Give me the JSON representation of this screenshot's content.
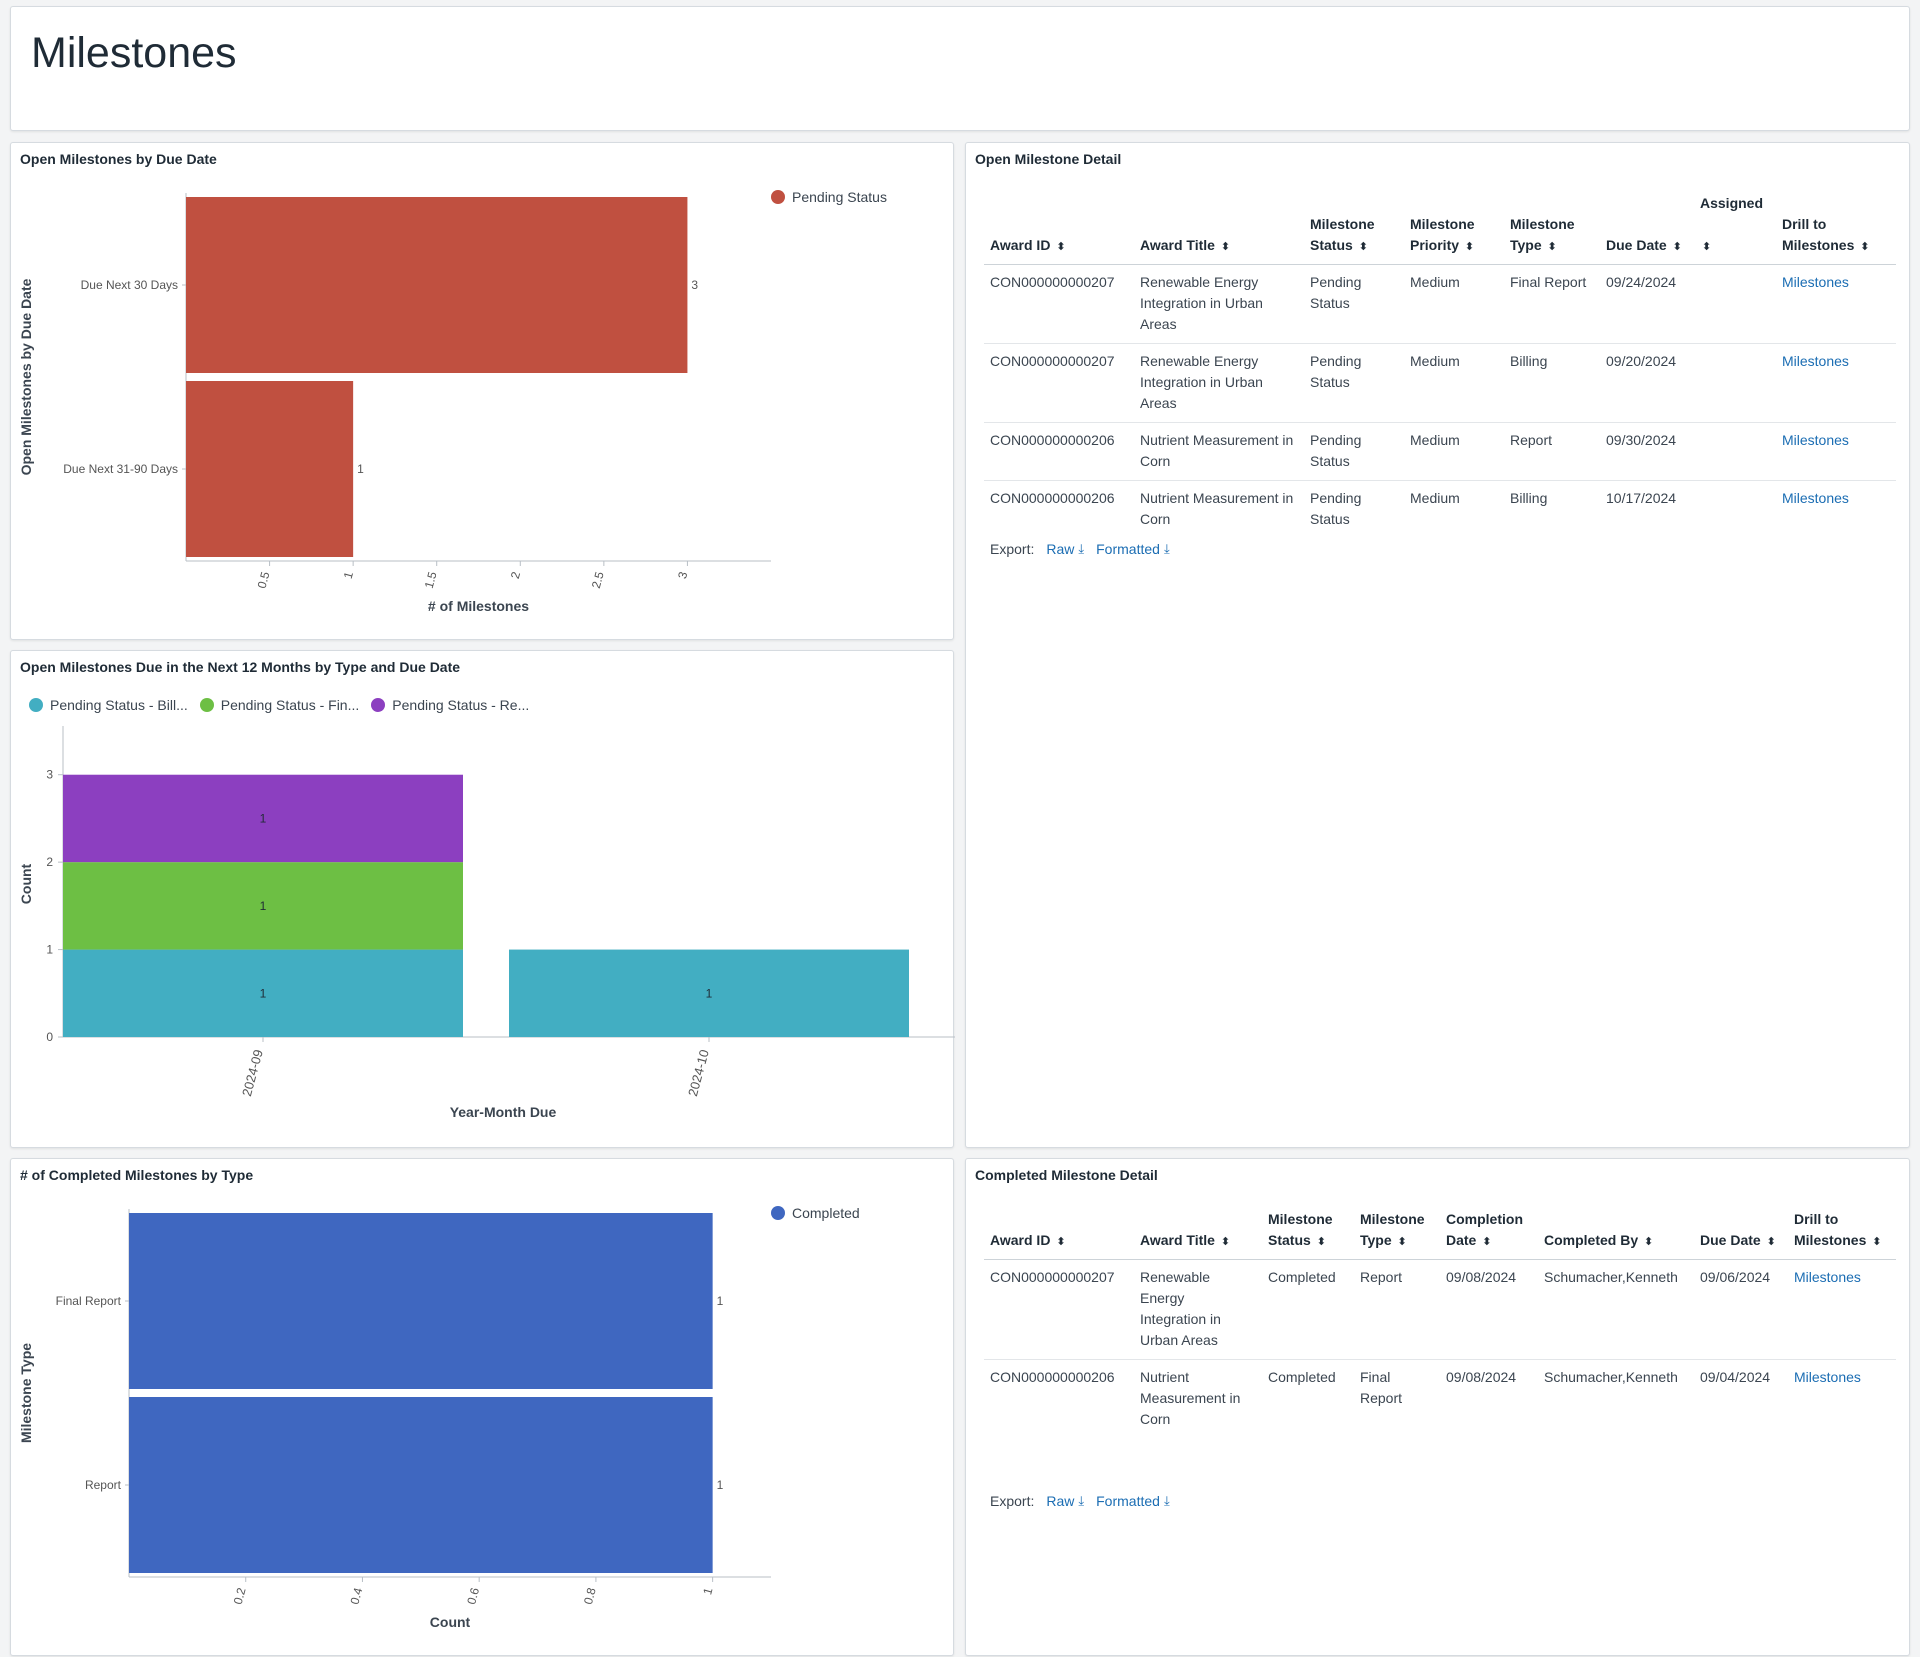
{
  "page": {
    "title": "Milestones"
  },
  "chart_data": [
    {
      "id": "open_by_due_date",
      "type": "bar",
      "orientation": "horizontal",
      "title": "Open Milestones by Due Date",
      "categories": [
        "Due Next 30 Days",
        "Due Next 31-90 Days"
      ],
      "series": [
        {
          "name": "Pending Status",
          "values": [
            3,
            1
          ],
          "color": "#c05040"
        }
      ],
      "xlabel": "# of Milestones",
      "ylabel": "Open Milestones by Due Date",
      "xticks": [
        "0.5",
        "1",
        "1.5",
        "2",
        "2.5",
        "3"
      ],
      "xlim": [
        0,
        3.5
      ],
      "legend": "top-right"
    },
    {
      "id": "open_next_12_months",
      "type": "bar",
      "stacked": true,
      "title": "Open Milestones Due in the Next 12 Months by Type and Due Date",
      "categories": [
        "2024-09",
        "2024-10"
      ],
      "series": [
        {
          "name": "Pending Status - Bill...",
          "values": [
            1,
            1
          ],
          "color": "#42aec2"
        },
        {
          "name": "Pending Status - Fin...",
          "values": [
            1,
            0
          ],
          "color": "#6dbf44"
        },
        {
          "name": "Pending Status - Re...",
          "values": [
            1,
            0
          ],
          "color": "#8c3fc0"
        }
      ],
      "xlabel": "Year-Month Due",
      "ylabel": "Count",
      "yticks": [
        "0",
        "1",
        "2",
        "3"
      ],
      "ylim": [
        0,
        3.5
      ],
      "legend": "top-left"
    },
    {
      "id": "completed_by_type",
      "type": "bar",
      "orientation": "horizontal",
      "title": "# of Completed Milestones by Type",
      "categories": [
        "Final Report",
        "Report"
      ],
      "series": [
        {
          "name": "Completed",
          "values": [
            1,
            1
          ],
          "color": "#3f67c0"
        }
      ],
      "xlabel": "Count",
      "ylabel": "Milestone Type",
      "xticks": [
        "0.2",
        "0.4",
        "0.6",
        "0.8",
        "1"
      ],
      "xlim": [
        0,
        1.1
      ],
      "legend": "top-right"
    }
  ],
  "open_detail": {
    "title": "Open Milestone Detail",
    "columns": [
      {
        "l1": "",
        "l2": "Award ID",
        "sort": "⬍"
      },
      {
        "l1": "",
        "l2": "Award Title",
        "sort": "⬍"
      },
      {
        "l1": "Milestone",
        "l2": "Status",
        "sort": "⬍"
      },
      {
        "l1": "Milestone",
        "l2": "Priority",
        "sort": "⬍"
      },
      {
        "l1": "Milestone",
        "l2": "Type",
        "sort": "⬍"
      },
      {
        "l1": "",
        "l2": "Due Date",
        "sort": "⬍"
      },
      {
        "l1": "Assigned",
        "l2": "",
        "sort": "⬍"
      },
      {
        "l1": "Drill to",
        "l2": "Milestones",
        "sort": "⬍"
      }
    ],
    "rows": [
      [
        "CON000000000207",
        "Renewable Energy Integration in Urban Areas",
        "Pending Status",
        "Medium",
        "Final Report",
        "09/24/2024",
        "",
        "Milestones"
      ],
      [
        "CON000000000207",
        "Renewable Energy Integration in Urban Areas",
        "Pending Status",
        "Medium",
        "Billing",
        "09/20/2024",
        "",
        "Milestones"
      ],
      [
        "CON000000000206",
        "Nutrient Measurement in Corn",
        "Pending Status",
        "Medium",
        "Report",
        "09/30/2024",
        "",
        "Milestones"
      ],
      [
        "CON000000000206",
        "Nutrient Measurement in Corn",
        "Pending Status",
        "Medium",
        "Billing",
        "10/17/2024",
        "",
        "Milestones"
      ]
    ],
    "export_label": "Export:",
    "raw_label": "Raw",
    "formatted_label": "Formatted",
    "download_icon": "download-icon"
  },
  "completed_detail": {
    "title": "Completed Milestone Detail",
    "columns": [
      {
        "l1": "",
        "l2": "Award ID",
        "sort": "⬍"
      },
      {
        "l1": "",
        "l2": "Award Title",
        "sort": "⬍"
      },
      {
        "l1": "Milestone",
        "l2": "Status",
        "sort": "⬍"
      },
      {
        "l1": "Milestone",
        "l2": "Type",
        "sort": "⬍"
      },
      {
        "l1": "Completion",
        "l2": "Date",
        "sort": "⬍"
      },
      {
        "l1": "",
        "l2": "Completed By",
        "sort": "⬍"
      },
      {
        "l1": "",
        "l2": "Due Date",
        "sort": "⬍"
      },
      {
        "l1": "Drill to",
        "l2": "Milestones",
        "sort": "⬍"
      }
    ],
    "rows": [
      [
        "CON000000000207",
        "Renewable Energy Integration in Urban Areas",
        "Completed",
        "Report",
        "09/08/2024",
        "Schumacher,Kenneth",
        "09/06/2024",
        "Milestones"
      ],
      [
        "CON000000000206",
        "Nutrient Measurement in Corn",
        "Completed",
        "Final Report",
        "09/08/2024",
        "Schumacher,Kenneth",
        "09/04/2024",
        "Milestones"
      ]
    ],
    "export_label": "Export:",
    "raw_label": "Raw",
    "formatted_label": "Formatted"
  }
}
